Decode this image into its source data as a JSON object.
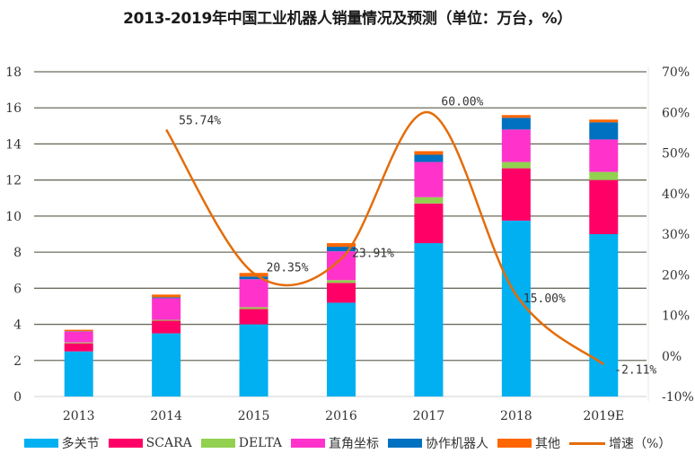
{
  "chart_data": {
    "type": "bar",
    "stacked": true,
    "title": "2013-2019年中国工业机器人销量情况及预测（单位：万台，%）",
    "categories": [
      "2013",
      "2014",
      "2015",
      "2016",
      "2017",
      "2018",
      "2019E"
    ],
    "series": [
      {
        "name": "多关节",
        "color": "#00B0F0",
        "values": [
          2.5,
          3.5,
          4.0,
          5.2,
          8.5,
          9.75,
          9.0
        ]
      },
      {
        "name": "SCARA",
        "color": "#FF0066",
        "values": [
          0.45,
          0.7,
          0.85,
          1.1,
          2.2,
          2.9,
          3.0
        ]
      },
      {
        "name": "DELTA",
        "color": "#92D050",
        "values": [
          0.05,
          0.05,
          0.1,
          0.15,
          0.35,
          0.35,
          0.45
        ]
      },
      {
        "name": "直角坐标",
        "color": "#FF33CC",
        "values": [
          0.6,
          1.2,
          1.55,
          1.6,
          1.95,
          1.8,
          1.8
        ]
      },
      {
        "name": "协作机器人",
        "color": "#0070C0",
        "values": [
          0.02,
          0.05,
          0.15,
          0.25,
          0.4,
          0.65,
          0.95
        ]
      },
      {
        "name": "其他",
        "color": "#FF6600",
        "values": [
          0.08,
          0.15,
          0.2,
          0.2,
          0.2,
          0.15,
          0.15
        ]
      }
    ],
    "line_series": {
      "name": "增速（%）",
      "color": "#E46C0A",
      "axis": "right",
      "values": [
        null,
        55.74,
        20.35,
        23.91,
        60.0,
        15.0,
        -2.11
      ],
      "labels": [
        "",
        "55.74%",
        "20.35%",
        "23.91%",
        "60.00%",
        "15.00%",
        "-2.11%"
      ],
      "smooth": true
    },
    "y_left": {
      "min": 0,
      "max": 18,
      "step": 2,
      "ticks": [
        "0",
        "2",
        "4",
        "6",
        "8",
        "10",
        "12",
        "14",
        "16",
        "18"
      ]
    },
    "y_right": {
      "min": -10,
      "max": 70,
      "step": 10,
      "ticks": [
        "-10%",
        "0%",
        "10%",
        "20%",
        "30%",
        "40%",
        "50%",
        "60%",
        "70%"
      ]
    },
    "xlabel": "",
    "ylabel": "",
    "grid": true,
    "legend_position": "bottom"
  },
  "legend": [
    {
      "label": "多关节",
      "kind": "bar"
    },
    {
      "label": "SCARA",
      "kind": "bar"
    },
    {
      "label": "DELTA",
      "kind": "bar"
    },
    {
      "label": "直角坐标",
      "kind": "bar"
    },
    {
      "label": "协作机器人",
      "kind": "bar"
    },
    {
      "label": "其他",
      "kind": "bar"
    },
    {
      "label": "增速（%）",
      "kind": "line"
    }
  ]
}
